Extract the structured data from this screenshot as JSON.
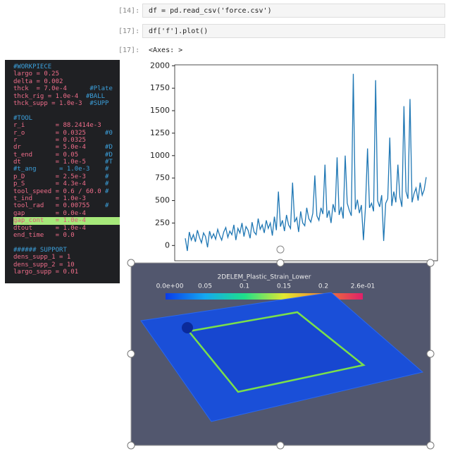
{
  "notebook": {
    "cells": [
      {
        "prompt": "[14]:",
        "code": "df = pd.read_csv('force.csv')"
      },
      {
        "prompt": "[17]:",
        "code": "df['f'].plot()"
      }
    ],
    "output": {
      "prompt": "[17]:",
      "text": "<Axes: >"
    }
  },
  "chart_data": {
    "type": "line",
    "color": "#1f77b4",
    "values": [
      80,
      -60,
      150,
      60,
      120,
      40,
      170,
      90,
      30,
      140,
      100,
      -20,
      160,
      80,
      130,
      70,
      180,
      110,
      60,
      150,
      200,
      90,
      160,
      120,
      230,
      60,
      190,
      140,
      250,
      100,
      210,
      170,
      80,
      260,
      150,
      120,
      300,
      180,
      230,
      140,
      280,
      190,
      250,
      110,
      320,
      170,
      600,
      210,
      280,
      160,
      340,
      230,
      190,
      700,
      260,
      310,
      150,
      380,
      250,
      220,
      420,
      300,
      260,
      360,
      780,
      330,
      280,
      420,
      350,
      900,
      310,
      390,
      250,
      460,
      370,
      980,
      340,
      430,
      300,
      1000,
      470,
      390,
      330,
      1910,
      400,
      510,
      360,
      450,
      60,
      430,
      1080,
      420,
      470,
      380,
      1840,
      500,
      430,
      560,
      50,
      470,
      520,
      1200,
      440,
      600,
      480,
      900,
      540,
      430,
      1550,
      600,
      520,
      1630,
      480,
      580,
      640,
      500,
      700,
      560,
      620,
      760
    ],
    "ylim": [
      -170,
      2010
    ],
    "yticks": [
      0,
      250,
      500,
      750,
      1000,
      1250,
      1500,
      1750,
      2000
    ]
  },
  "editor": {
    "sections": [
      [
        {
          "comment": "#WORKPIECE"
        },
        {
          "code": "largo = 0.25"
        },
        {
          "code": "delta = 0.002"
        },
        {
          "code": "thck  = 7.0e-4      ",
          "comment": "#Plate"
        },
        {
          "code": "thck_rig = 1.0e-4  ",
          "comment": "#BALL"
        },
        {
          "code": "thck_supp = 1.0e-3  ",
          "comment": "#SUPP"
        }
      ],
      [
        {
          "comment": "#TOOL"
        },
        {
          "code": "r_i        = 88.2414e-3"
        },
        {
          "code": "r_o        = 0.0325     ",
          "comment": "#0"
        },
        {
          "code": "r          = 0.0325"
        },
        {
          "code": "dr         = 5.0e-4     ",
          "comment": "#D"
        },
        {
          "code": "t_end      = 0.05       ",
          "comment": "#D"
        },
        {
          "code": "dt         = 1.0e-5     ",
          "comment": "#T"
        },
        {
          "comment": "#t_ang      = 1.0e-3    #"
        },
        {
          "code": "p_D        = 2.5e-3     ",
          "comment": "#"
        },
        {
          "code": "p_S        = 4.3e-4     ",
          "comment": "#"
        },
        {
          "code": "tool_speed = 0.6 / 60.0 ",
          "comment": "#"
        },
        {
          "code": "t_ind      = 1.0e-3"
        },
        {
          "code": "tool_rad   = 0.00755    ",
          "comment": "#"
        },
        {
          "code": "gap        = 0.0e-4"
        },
        {
          "code": "gap_cont   = 1.0e-4",
          "highlight": true
        },
        {
          "code": "dtout      = 1.0e-4"
        },
        {
          "code": "end_time   = 0.0"
        }
      ],
      [
        {
          "comment": "###### SUPPORT"
        },
        {
          "code": "dens_supp_1 = 1"
        },
        {
          "code": "dens_supp_2 = 10"
        },
        {
          "code": "largo_supp = 0.01"
        }
      ]
    ]
  },
  "render": {
    "title": "2DELEM_Plastic_Strain_Lower",
    "colorbar_labels": [
      "0.0e+00",
      "0.05",
      "0.1",
      "0.15",
      "0.2",
      "2.6e-01"
    ]
  }
}
